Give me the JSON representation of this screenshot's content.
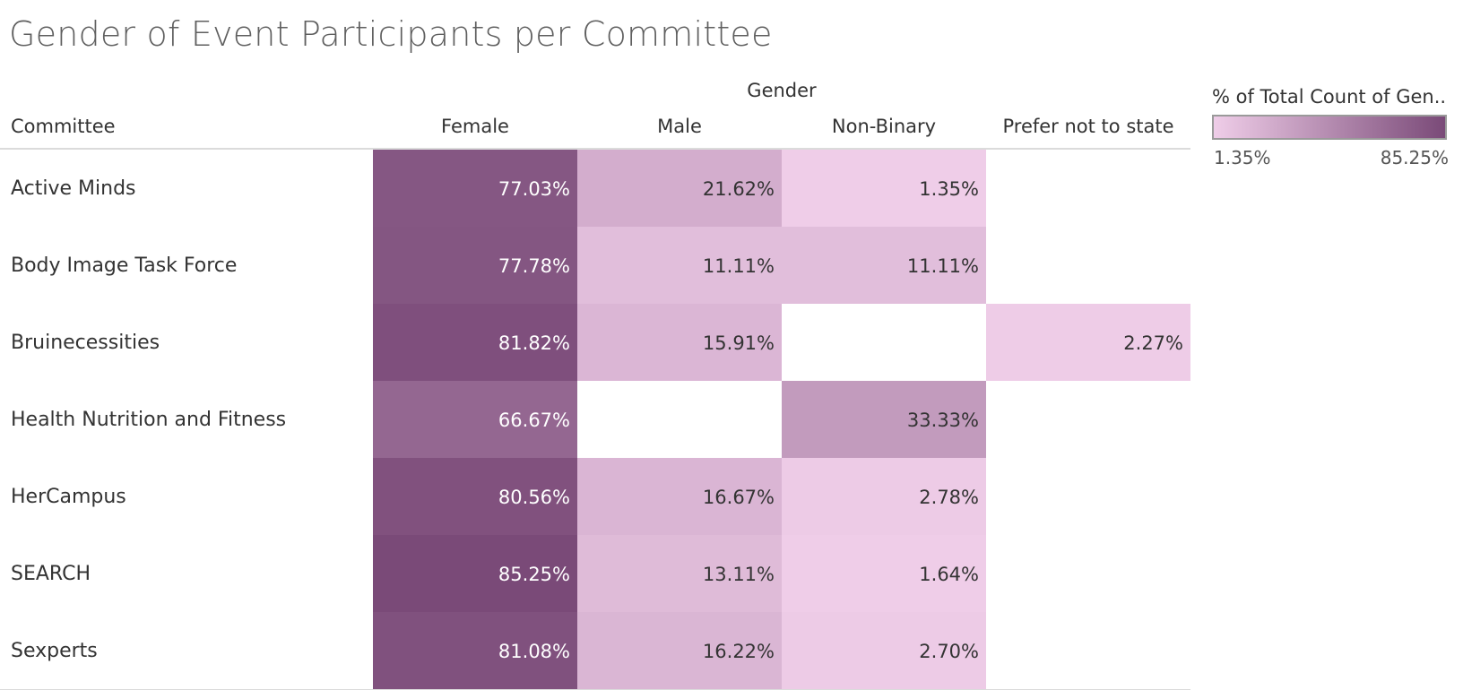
{
  "title": "Gender of Event Participants per Committee",
  "chart_data": {
    "type": "heatmap",
    "title": "Gender of Event Participants per Committee",
    "column_group_label": "Gender",
    "row_header": "Committee",
    "columns": [
      "Female",
      "Male",
      "Non-Binary",
      "Prefer not to state"
    ],
    "rows": [
      {
        "committee": "Active Minds",
        "values": [
          77.03,
          21.62,
          1.35,
          null
        ],
        "labels": [
          "77.03%",
          "21.62%",
          "1.35%",
          ""
        ]
      },
      {
        "committee": "Body Image Task Force",
        "values": [
          77.78,
          11.11,
          11.11,
          null
        ],
        "labels": [
          "77.78%",
          "11.11%",
          "11.11%",
          ""
        ]
      },
      {
        "committee": "Bruinecessities",
        "values": [
          81.82,
          15.91,
          null,
          2.27
        ],
        "labels": [
          "81.82%",
          "15.91%",
          "",
          "2.27%"
        ]
      },
      {
        "committee": "Health Nutrition and Fitness",
        "values": [
          66.67,
          null,
          33.33,
          null
        ],
        "labels": [
          "66.67%",
          "",
          "33.33%",
          ""
        ]
      },
      {
        "committee": "HerCampus",
        "values": [
          80.56,
          16.67,
          2.78,
          null
        ],
        "labels": [
          "80.56%",
          "16.67%",
          "2.78%",
          ""
        ]
      },
      {
        "committee": "SEARCH",
        "values": [
          85.25,
          13.11,
          1.64,
          null
        ],
        "labels": [
          "85.25%",
          "13.11%",
          "1.64%",
          ""
        ]
      },
      {
        "committee": "Sexperts",
        "values": [
          81.08,
          16.22,
          2.7,
          null
        ],
        "labels": [
          "81.08%",
          "16.22%",
          "2.70%",
          ""
        ]
      }
    ],
    "color_scale": {
      "title": "% of Total Count of Gen..",
      "min": 1.35,
      "max": 85.25,
      "min_label": "1.35%",
      "max_label": "85.25%",
      "min_color": "#efcde8",
      "max_color": "#7a4a78"
    }
  }
}
